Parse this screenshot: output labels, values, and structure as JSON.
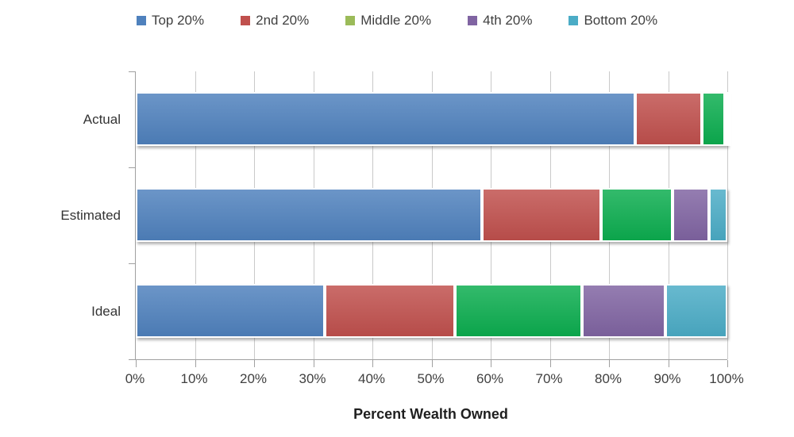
{
  "chart_data": {
    "type": "bar",
    "subtype": "horizontal-stacked",
    "title": "",
    "xlabel": "Percent Wealth Owned",
    "ylabel": "",
    "xlim": [
      0,
      100
    ],
    "grid": true,
    "legend_position": "top",
    "categories": [
      "Actual",
      "Estimated",
      "Ideal"
    ],
    "x_ticks": [
      "0%",
      "10%",
      "20%",
      "30%",
      "40%",
      "50%",
      "60%",
      "70%",
      "80%",
      "90%",
      "100%"
    ],
    "series": [
      {
        "name": "Top 20%",
        "color": "#4F81BD",
        "legend_color": "#4F81BD",
        "values": [
          84.4,
          58.5,
          32.0
        ]
      },
      {
        "name": "2nd 20%",
        "color": "#C0504D",
        "legend_color": "#C0504D",
        "values": [
          11.3,
          20.2,
          22.0
        ]
      },
      {
        "name": "Middle 20%",
        "color": "#0CAD4F",
        "legend_color": "#9BBB59",
        "values": [
          3.9,
          12.0,
          21.5
        ]
      },
      {
        "name": "4th 20%",
        "color": "#8064A2",
        "legend_color": "#8064A2",
        "values": [
          0.3,
          6.2,
          14.0
        ]
      },
      {
        "name": "Bottom 20%",
        "color": "#4BACC6",
        "legend_color": "#4BACC6",
        "values": [
          0.1,
          3.1,
          10.5
        ]
      }
    ]
  },
  "colors": {
    "gridline": "#c9c9c9",
    "axis": "#a0a0a0",
    "text": "#3f3f3f"
  }
}
